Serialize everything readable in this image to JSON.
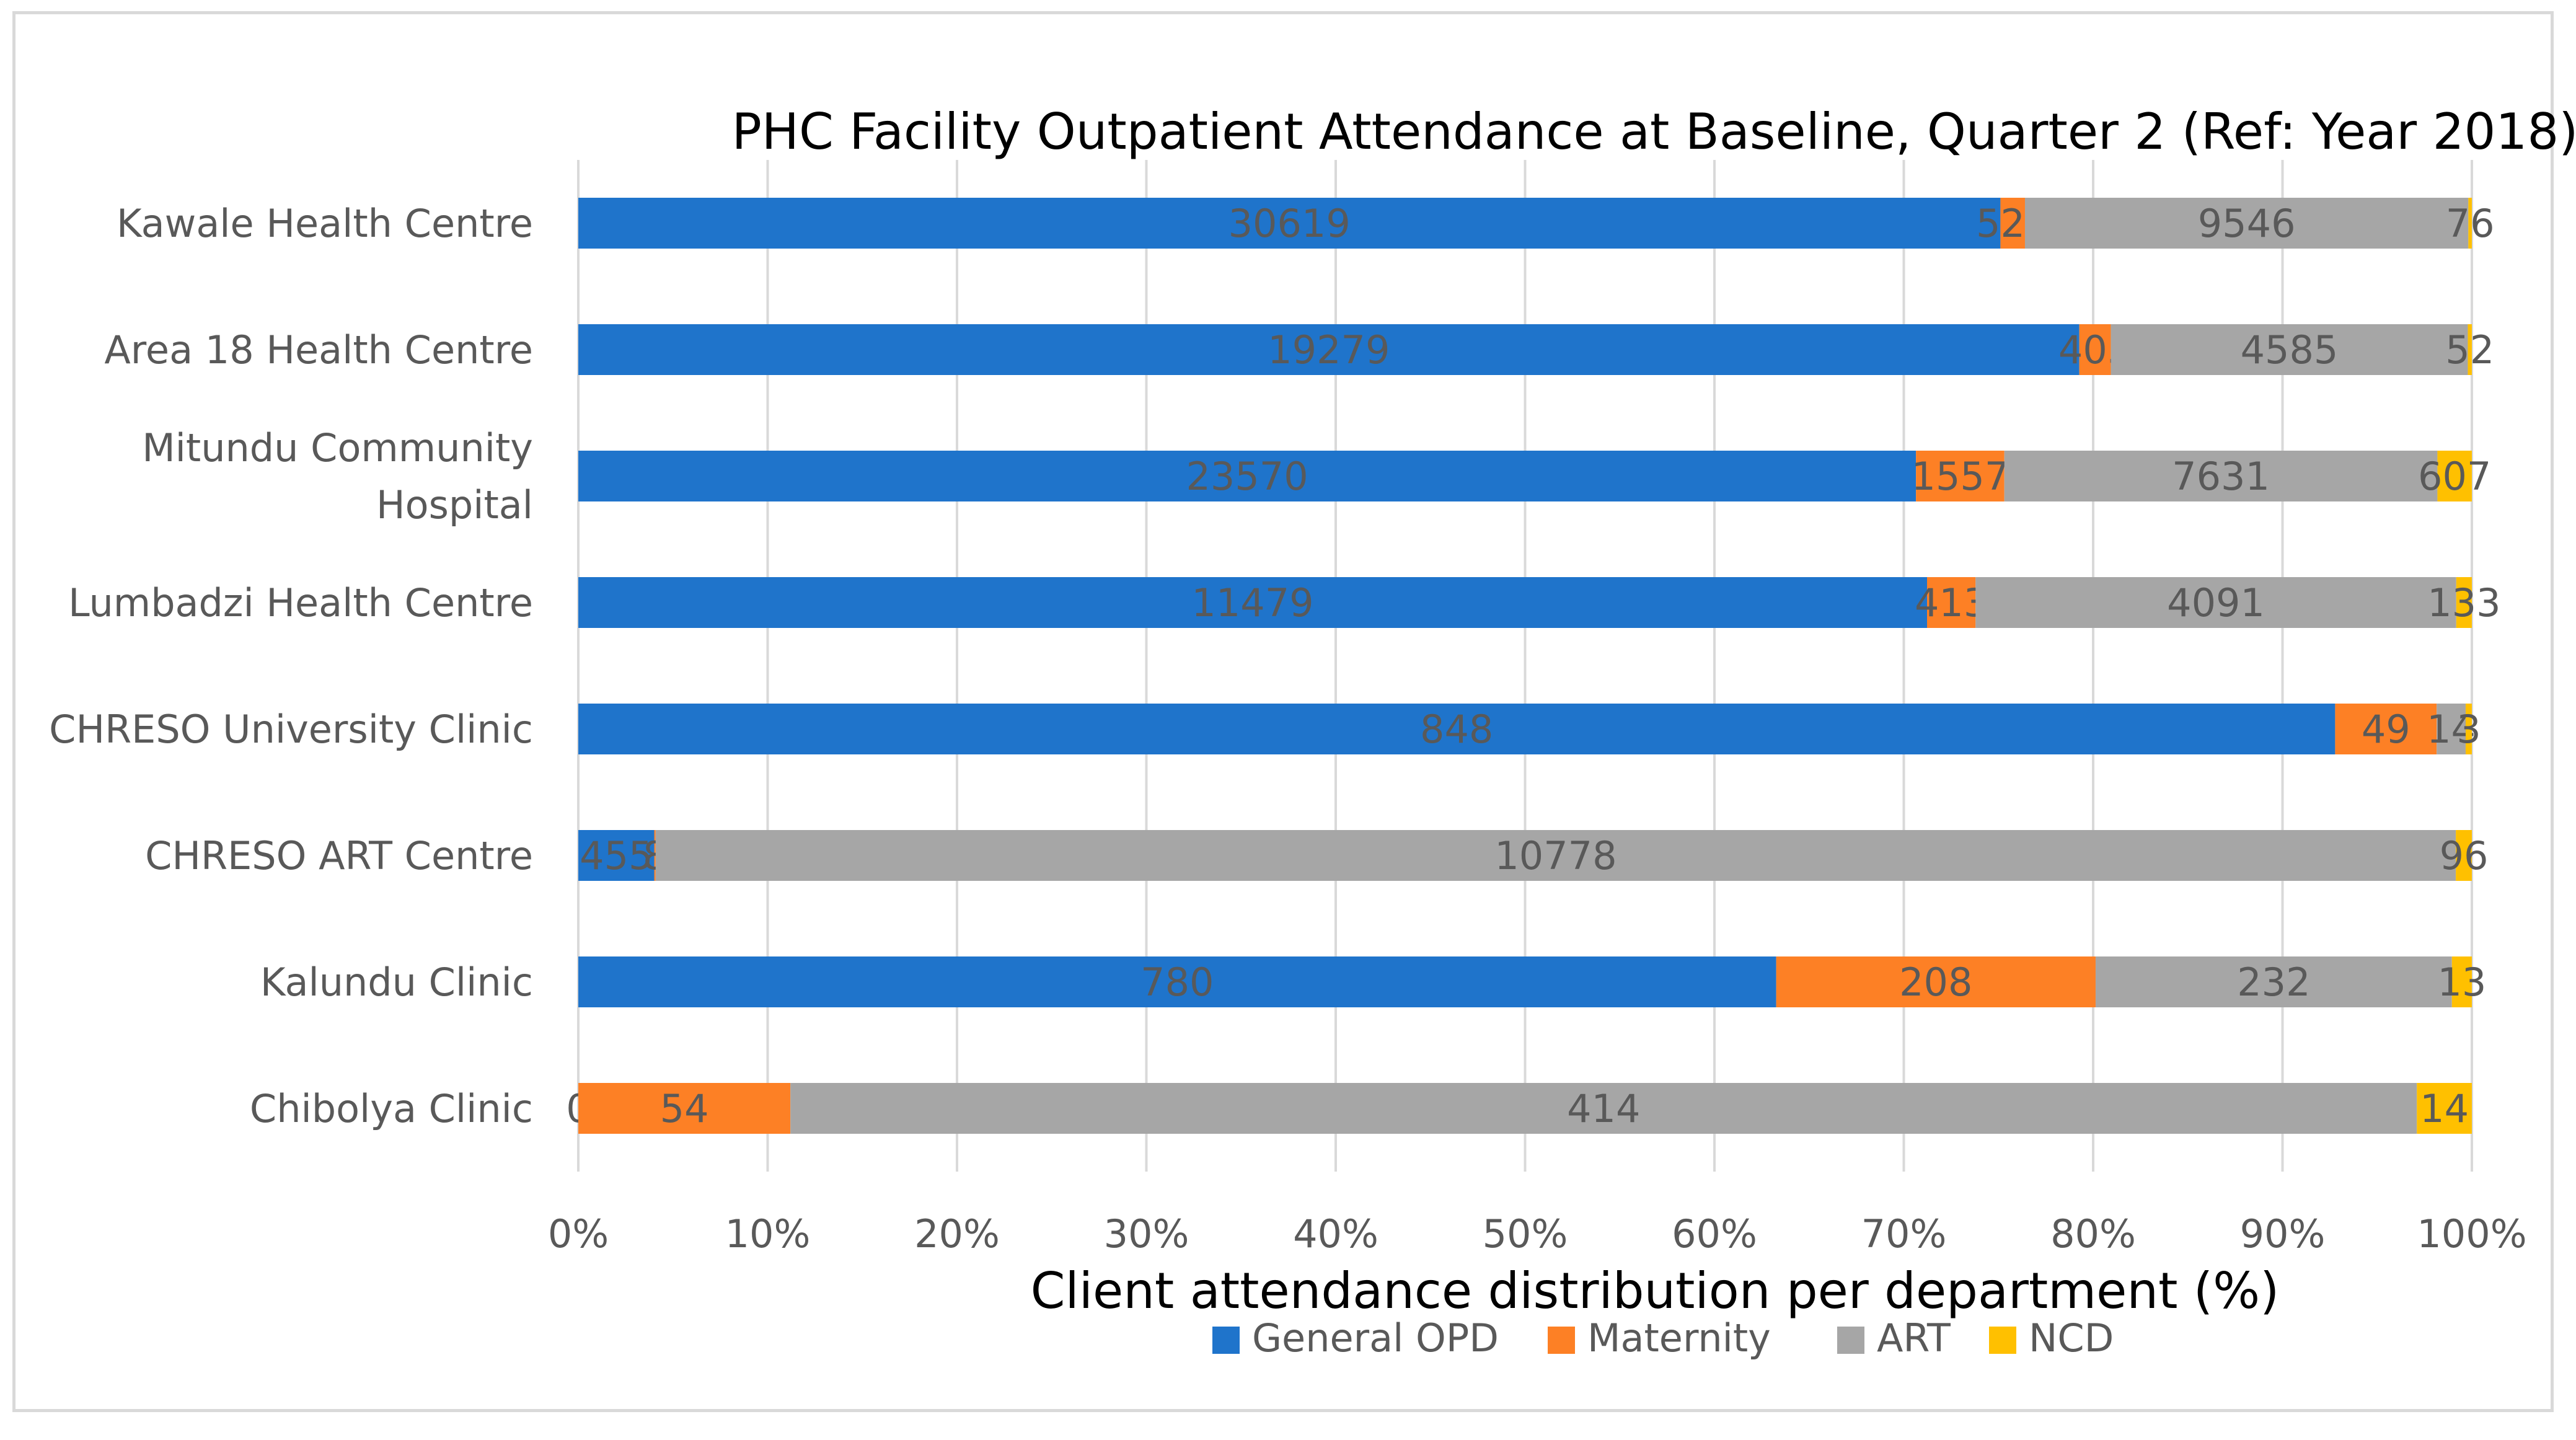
{
  "chart_data": {
    "type": "bar",
    "orientation": "horizontal",
    "stacked": "percent",
    "title": "PHC Facility Outpatient Attendance at Baseline, Quarter 2 (Ref: Year 2018)",
    "xlabel": "Client attendance distribution per department (%)",
    "ylabel": "",
    "xlim": [
      0,
      100
    ],
    "x_ticks": [
      "0%",
      "10%",
      "20%",
      "30%",
      "40%",
      "50%",
      "60%",
      "70%",
      "80%",
      "90%",
      "100%"
    ],
    "grid": "vertical",
    "legend": "bottom",
    "categories": [
      "Kawale Health Centre",
      "Area 18 Health Centre",
      "Mitundu Community Hospital",
      "Lumbadzi Health Centre",
      "CHRESO University Clinic",
      "CHRESO ART Centre",
      "Kalundu Clinic",
      "Chibolya Clinic"
    ],
    "category_lines": [
      [
        "Kawale Health Centre"
      ],
      [
        "Area 18 Health Centre"
      ],
      [
        "Mitundu Community",
        "Hospital"
      ],
      [
        "Lumbadzi Health Centre"
      ],
      [
        "CHRESO University Clinic"
      ],
      [
        "CHRESO ART Centre"
      ],
      [
        "Kalundu Clinic"
      ],
      [
        "Chibolya Clinic"
      ]
    ],
    "series": [
      {
        "name": "General OPD",
        "color": "#1f74cb",
        "values": [
          30619,
          19279,
          23570,
          11479,
          848,
          455,
          780,
          0
        ]
      },
      {
        "name": "Maternity",
        "color": "#fd8025",
        "values": [
          528,
          405,
          1557,
          413,
          49,
          8,
          208,
          54
        ]
      },
      {
        "name": "ART",
        "color": "#a6a6a6",
        "values": [
          9546,
          4585,
          7631,
          4091,
          14,
          10778,
          232,
          414
        ]
      },
      {
        "name": "NCD",
        "color": "#ffc000",
        "values": [
          76,
          52,
          607,
          133,
          3,
          96,
          13,
          14
        ]
      }
    ]
  }
}
